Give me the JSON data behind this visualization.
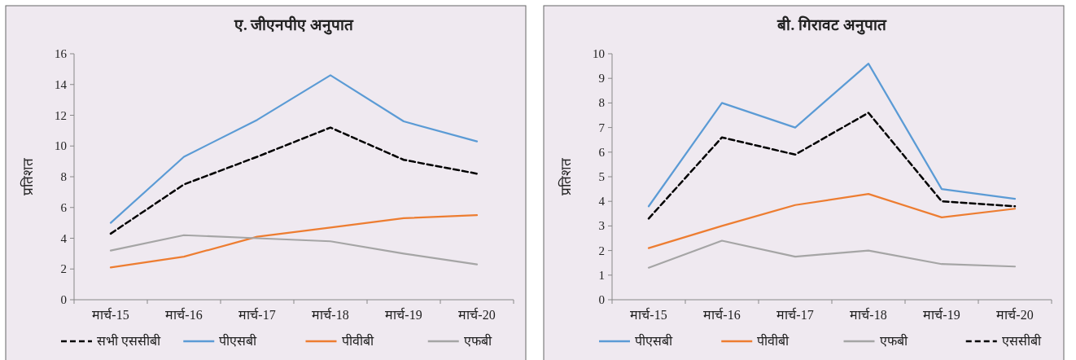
{
  "chart_data": [
    {
      "type": "line",
      "title": "ए. जीएनपीए अनुपात",
      "ylabel": "प्रतिशत",
      "categories": [
        "मार्च-15",
        "मार्च-16",
        "मार्च-17",
        "मार्च-18",
        "मार्च-19",
        "मार्च-20"
      ],
      "ylim": [
        0,
        16
      ],
      "yticks": [
        0,
        2,
        4,
        6,
        8,
        10,
        12,
        14,
        16
      ],
      "grid": false,
      "legend": "bottom",
      "series": [
        {
          "name": "सभी एससीबी",
          "color": "#000000",
          "line_style": "dashed",
          "values": [
            4.3,
            7.5,
            9.3,
            11.2,
            9.1,
            8.2
          ]
        },
        {
          "name": "पीएसबी",
          "color": "#5b9bd5",
          "values": [
            5.0,
            9.3,
            11.7,
            14.6,
            11.6,
            10.3
          ]
        },
        {
          "name": "पीवीबी",
          "color": "#ed7d31",
          "values": [
            2.1,
            2.8,
            4.1,
            4.7,
            5.3,
            5.5
          ]
        },
        {
          "name": "एफबी",
          "color": "#a5a5a5",
          "values": [
            3.2,
            4.2,
            4.0,
            3.8,
            3.0,
            2.3
          ]
        }
      ]
    },
    {
      "type": "line",
      "title": "बी. गिरावट अनुपात",
      "ylabel": "प्रतिशत",
      "categories": [
        "मार्च-15",
        "मार्च-16",
        "मार्च-17",
        "मार्च-18",
        "मार्च-19",
        "मार्च-20"
      ],
      "ylim": [
        0,
        10
      ],
      "yticks": [
        0,
        1,
        2,
        3,
        4,
        5,
        6,
        7,
        8,
        9,
        10
      ],
      "grid": false,
      "legend": "bottom",
      "series": [
        {
          "name": "पीएसबी",
          "color": "#5b9bd5",
          "values": [
            3.8,
            8.0,
            7.0,
            9.6,
            4.5,
            4.1
          ]
        },
        {
          "name": "पीवीबी",
          "color": "#ed7d31",
          "values": [
            2.1,
            3.0,
            3.85,
            4.3,
            3.35,
            3.7
          ]
        },
        {
          "name": "एफबी",
          "color": "#a5a5a5",
          "values": [
            1.3,
            2.4,
            1.75,
            2.0,
            1.45,
            1.35
          ]
        },
        {
          "name": "एससीबी",
          "color": "#000000",
          "line_style": "dashed",
          "values": [
            3.3,
            6.6,
            5.9,
            7.6,
            4.0,
            3.8
          ]
        }
      ]
    }
  ]
}
